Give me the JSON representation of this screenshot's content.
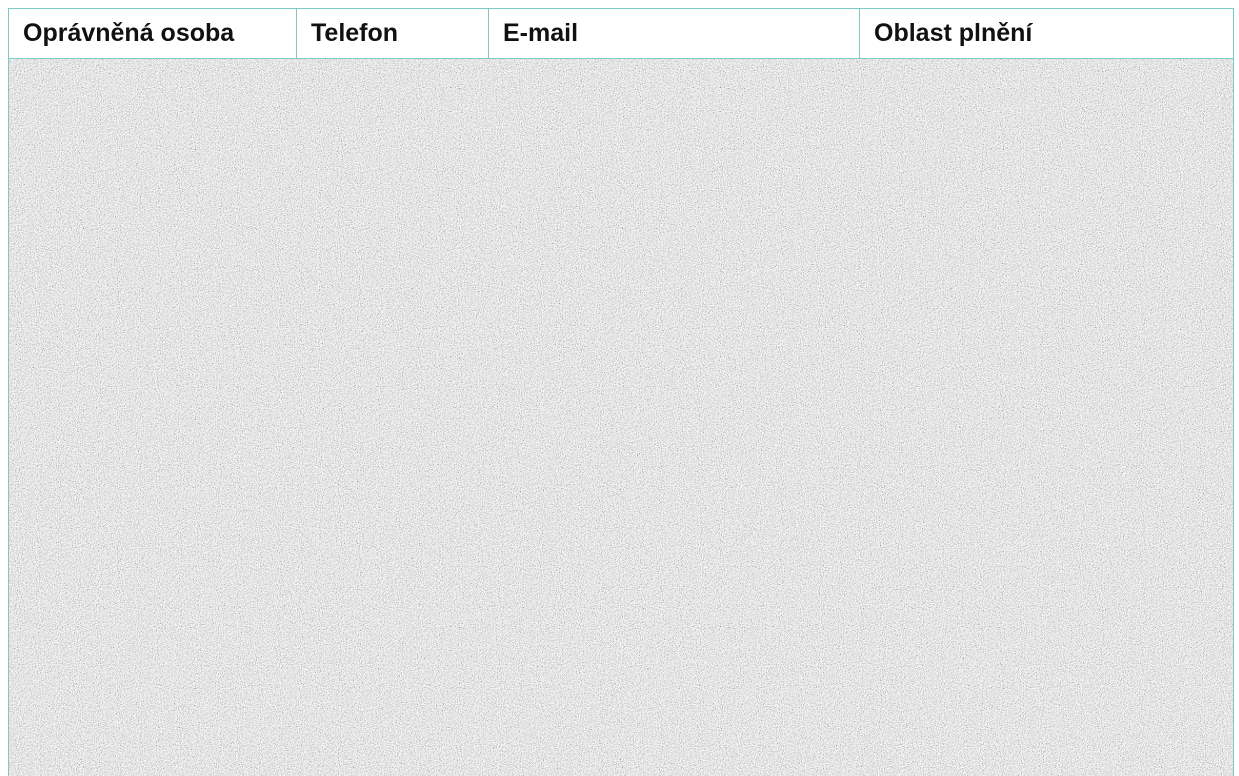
{
  "table": {
    "columns": [
      "Oprávněná osoba",
      "Telefon",
      "E-mail",
      "Oblast plnění"
    ]
  },
  "redaction": {
    "type": "noise-obscured-content",
    "color_light": "#ffffff",
    "color_dark": "#111111",
    "border_color": "#7cc9c8"
  }
}
